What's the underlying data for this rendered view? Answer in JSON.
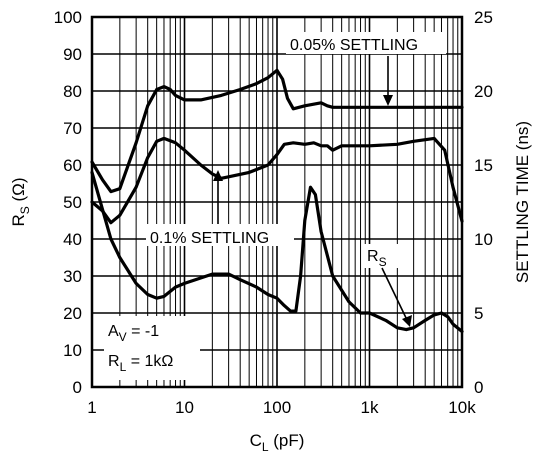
{
  "chart_data": {
    "type": "line",
    "x_scale": "log",
    "xlim": [
      1,
      10000
    ],
    "ylim_left": [
      0,
      100
    ],
    "ylim_right": [
      0,
      25
    ],
    "grid": true,
    "x_ticks": [
      "1",
      "10",
      "100",
      "1k",
      "10k"
    ],
    "y_ticks_left": [
      "0",
      "10",
      "20",
      "30",
      "40",
      "50",
      "60",
      "70",
      "80",
      "90",
      "100"
    ],
    "y_ticks_right": [
      "0",
      "5",
      "10",
      "15",
      "20",
      "25"
    ],
    "xlabel": {
      "main": "C",
      "sub": "L",
      "unit": " (pF)"
    },
    "ylabel_left": {
      "main": "R",
      "sub": "S",
      "unit": " (Ω)"
    },
    "ylabel_right": "SETTLING TIME (ns)",
    "series": [
      {
        "name": "0.05% SETTLING",
        "axis": "right",
        "points": [
          [
            1,
            15.2
          ],
          [
            1.3,
            14.0
          ],
          [
            1.6,
            13.2
          ],
          [
            2,
            13.4
          ],
          [
            3,
            16.5
          ],
          [
            4,
            19.0
          ],
          [
            5,
            20.1
          ],
          [
            6,
            20.3
          ],
          [
            7,
            20.1
          ],
          [
            8,
            19.7
          ],
          [
            10,
            19.4
          ],
          [
            15,
            19.4
          ],
          [
            25,
            19.7
          ],
          [
            40,
            20.1
          ],
          [
            60,
            20.5
          ],
          [
            80,
            20.9
          ],
          [
            100,
            21.4
          ],
          [
            115,
            20.8
          ],
          [
            130,
            19.5
          ],
          [
            150,
            18.8
          ],
          [
            200,
            19.0
          ],
          [
            300,
            19.2
          ],
          [
            350,
            19.0
          ],
          [
            400,
            18.9
          ],
          [
            1000,
            18.9
          ],
          [
            5000,
            18.9
          ],
          [
            10000,
            18.9
          ]
        ]
      },
      {
        "name": "0.1% SETTLING",
        "axis": "right",
        "points": [
          [
            1,
            12.5
          ],
          [
            1.3,
            11.9
          ],
          [
            1.6,
            11.1
          ],
          [
            2,
            11.6
          ],
          [
            3,
            13.5
          ],
          [
            4,
            15.5
          ],
          [
            5,
            16.6
          ],
          [
            6,
            16.8
          ],
          [
            8,
            16.5
          ],
          [
            10,
            16.0
          ],
          [
            15,
            15.0
          ],
          [
            20,
            14.4
          ],
          [
            25,
            14.1
          ],
          [
            30,
            14.2
          ],
          [
            50,
            14.5
          ],
          [
            80,
            15.0
          ],
          [
            100,
            15.7
          ],
          [
            120,
            16.4
          ],
          [
            150,
            16.5
          ],
          [
            200,
            16.4
          ],
          [
            250,
            16.5
          ],
          [
            300,
            16.3
          ],
          [
            350,
            16.3
          ],
          [
            400,
            16.0
          ],
          [
            500,
            16.3
          ],
          [
            1000,
            16.3
          ],
          [
            2000,
            16.4
          ],
          [
            3000,
            16.6
          ],
          [
            5000,
            16.8
          ],
          [
            6500,
            16.0
          ],
          [
            8000,
            13.5
          ],
          [
            10000,
            11.2
          ]
        ]
      },
      {
        "name": "RS",
        "axis": "left",
        "points": [
          [
            1,
            58
          ],
          [
            1.3,
            48
          ],
          [
            1.6,
            40
          ],
          [
            2,
            35
          ],
          [
            3,
            28
          ],
          [
            4,
            25
          ],
          [
            5,
            24
          ],
          [
            6,
            24.5
          ],
          [
            8,
            27
          ],
          [
            10,
            28
          ],
          [
            20,
            30.5
          ],
          [
            30,
            30.5
          ],
          [
            40,
            29
          ],
          [
            60,
            27
          ],
          [
            80,
            25
          ],
          [
            100,
            24
          ],
          [
            120,
            22
          ],
          [
            140,
            20.5
          ],
          [
            160,
            20.5
          ],
          [
            180,
            30
          ],
          [
            200,
            45
          ],
          [
            230,
            54
          ],
          [
            260,
            52
          ],
          [
            300,
            42
          ],
          [
            400,
            30
          ],
          [
            600,
            23
          ],
          [
            800,
            20
          ],
          [
            1000,
            20
          ],
          [
            1500,
            18
          ],
          [
            2000,
            16
          ],
          [
            2500,
            15.5
          ],
          [
            3000,
            16
          ],
          [
            4000,
            18
          ],
          [
            5000,
            19.5
          ],
          [
            6000,
            20
          ],
          [
            7000,
            19
          ],
          [
            8000,
            17
          ],
          [
            10000,
            15
          ]
        ]
      }
    ],
    "annotations": {
      "s005": "0.05% SETTLING",
      "s01": "0.1% SETTLING",
      "rs": {
        "main": "R",
        "sub": "S"
      },
      "av": {
        "main": "A",
        "sub": "V",
        "rest": " = -1"
      },
      "rl": {
        "main": "R",
        "sub": "L",
        "rest": " = 1kΩ"
      }
    }
  }
}
